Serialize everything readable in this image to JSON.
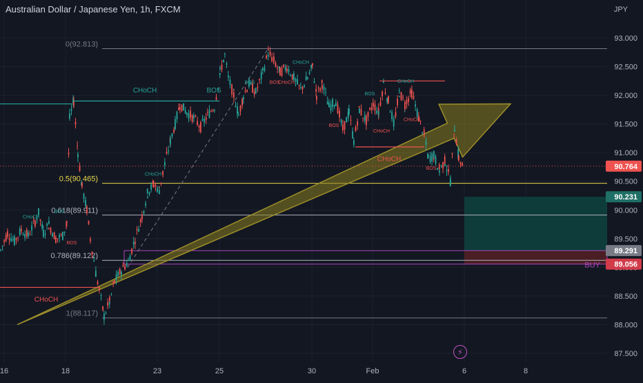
{
  "header": {
    "title": "Australian Dollar / Japanese Yen, 1h, FXCM",
    "currency": "JPY"
  },
  "colors": {
    "bg": "#131722",
    "grid": "#1e2230",
    "up": "#26a69a",
    "down": "#ef5350",
    "text": "#b2b5be",
    "fib_gold": "#e8d84a",
    "arrow": "#8a7d1f",
    "target": "#0e3c3a",
    "stop": "#4a1e24",
    "current_tag": "#ef5350",
    "entry_tag": "#787b86",
    "stop_tag": "#d13b4a",
    "target_tag": "#1f6f66",
    "buy_label": "#ab47bc"
  },
  "chart_data": {
    "type": "candlestick",
    "title": "Australian Dollar / Japanese Yen, 1h, FXCM",
    "ylabel": "JPY",
    "ylim": [
      87.4,
      93.3
    ],
    "y_ticks": [
      "93.000",
      "92.500",
      "92.000",
      "91.500",
      "91.000",
      "90.500",
      "90.000",
      "89.500",
      "89.000",
      "88.500",
      "88.000",
      "87.500"
    ],
    "y_tick_values": [
      93.0,
      92.5,
      92.0,
      91.5,
      91.0,
      90.5,
      90.0,
      89.5,
      89.0,
      88.5,
      88.0,
      87.5
    ],
    "x_ticks": [
      "16",
      "18",
      "23",
      "25",
      "30",
      "Feb",
      "6",
      "8"
    ],
    "price_path": [
      [
        0,
        89.3
      ],
      [
        10,
        89.6
      ],
      [
        20,
        89.45
      ],
      [
        30,
        89.65
      ],
      [
        40,
        89.55
      ],
      [
        50,
        89.8
      ],
      [
        55,
        89.95
      ],
      [
        62,
        89.6
      ],
      [
        70,
        89.75
      ],
      [
        80,
        89.5
      ],
      [
        90,
        89.55
      ],
      [
        96,
        89.8
      ],
      [
        100,
        91.6
      ],
      [
        106,
        91.9
      ],
      [
        112,
        91.0
      ],
      [
        118,
        90.4
      ],
      [
        125,
        90.0
      ],
      [
        130,
        89.5
      ],
      [
        138,
        88.9
      ],
      [
        143,
        88.6
      ],
      [
        150,
        88.15
      ],
      [
        158,
        88.4
      ],
      [
        165,
        88.75
      ],
      [
        175,
        88.95
      ],
      [
        185,
        89.1
      ],
      [
        195,
        89.5
      ],
      [
        205,
        89.9
      ],
      [
        213,
        90.3
      ],
      [
        222,
        90.45
      ],
      [
        230,
        90.35
      ],
      [
        238,
        90.8
      ],
      [
        246,
        91.2
      ],
      [
        253,
        91.5
      ],
      [
        260,
        91.85
      ],
      [
        270,
        91.7
      ],
      [
        280,
        91.6
      ],
      [
        290,
        91.45
      ],
      [
        300,
        91.65
      ],
      [
        310,
        91.8
      ],
      [
        318,
        92.4
      ],
      [
        325,
        92.7
      ],
      [
        330,
        92.3
      ],
      [
        338,
        92.0
      ],
      [
        345,
        91.65
      ],
      [
        352,
        92.0
      ],
      [
        360,
        92.2
      ],
      [
        370,
        92.05
      ],
      [
        380,
        92.4
      ],
      [
        388,
        92.75
      ],
      [
        396,
        92.6
      ],
      [
        405,
        92.4
      ],
      [
        415,
        92.5
      ],
      [
        425,
        92.3
      ],
      [
        435,
        92.1
      ],
      [
        445,
        92.3
      ],
      [
        452,
        92.5
      ],
      [
        458,
        92.0
      ],
      [
        466,
        92.2
      ],
      [
        476,
        91.8
      ],
      [
        486,
        91.9
      ],
      [
        496,
        91.4
      ],
      [
        505,
        91.7
      ],
      [
        512,
        91.2
      ],
      [
        520,
        91.75
      ],
      [
        530,
        91.55
      ],
      [
        540,
        91.85
      ],
      [
        548,
        91.7
      ],
      [
        555,
        92.2
      ],
      [
        562,
        91.9
      ],
      [
        570,
        91.5
      ],
      [
        578,
        92.05
      ],
      [
        586,
        91.85
      ],
      [
        596,
        92.05
      ],
      [
        606,
        91.6
      ],
      [
        614,
        91.3
      ],
      [
        620,
        90.9
      ],
      [
        628,
        90.95
      ],
      [
        636,
        90.7
      ],
      [
        644,
        90.85
      ],
      [
        652,
        90.5
      ],
      [
        658,
        91.45
      ],
      [
        664,
        90.9
      ],
      [
        670,
        90.76
      ]
    ],
    "structure_lines": [
      {
        "label": "CHoCH",
        "x1": 0,
        "x2": 105,
        "y": 91.85,
        "color": "#26a69a",
        "label_x": 210,
        "label_y": 92.05
      },
      {
        "label": "CHoCH",
        "x1": 0,
        "x2": 145,
        "y": 88.65,
        "color": "#ef5350",
        "label_x": 67,
        "label_y": 88.4
      },
      {
        "label": "BOS",
        "x1": 105,
        "x2": 318,
        "y": 91.9,
        "color": "#26a69a",
        "label_x": 310,
        "label_y": 92.05
      },
      {
        "label": "CHoCH",
        "x1": 515,
        "x2": 615,
        "y": 91.1,
        "color": "#ef5350",
        "label_x": 564,
        "label_y": 90.85
      },
      {
        "label": "",
        "x1": 550,
        "x2": 645,
        "y": 92.25,
        "color": "#ef5350",
        "label_x": 0,
        "label_y": 0
      }
    ],
    "small_labels": [
      {
        "text": "CHoCH",
        "x": 45,
        "y": 89.85,
        "color": "#26a69a"
      },
      {
        "text": "BOS",
        "x": 86,
        "y": 89.95,
        "color": "#26a69a"
      },
      {
        "text": "BOS",
        "x": 104,
        "y": 89.4,
        "color": "#ef5350"
      },
      {
        "text": "CHoCH",
        "x": 222,
        "y": 90.6,
        "color": "#26a69a"
      },
      {
        "text": "BOS",
        "x": 362,
        "y": 92.2,
        "color": "#26a69a"
      },
      {
        "text": "BOS",
        "x": 398,
        "y": 92.2,
        "color": "#ef5350"
      },
      {
        "text": "CHoCH",
        "x": 436,
        "y": 92.55,
        "color": "#26a69a"
      },
      {
        "text": "CHoCH",
        "x": 415,
        "y": 92.2,
        "color": "#ef5350"
      },
      {
        "text": "BOS",
        "x": 484,
        "y": 91.45,
        "color": "#ef5350"
      },
      {
        "text": "BOS",
        "x": 536,
        "y": 92.0,
        "color": "#26a69a"
      },
      {
        "text": "CHoCH",
        "x": 553,
        "y": 91.35,
        "color": "#ef5350"
      },
      {
        "text": "CHoCH",
        "x": 588,
        "y": 92.22,
        "color": "#26a69a"
      },
      {
        "text": "CHoCH",
        "x": 597,
        "y": 91.55,
        "color": "#ef5350"
      },
      {
        "text": "BOS",
        "x": 625,
        "y": 90.7,
        "color": "#ef5350"
      }
    ],
    "fib_levels": [
      {
        "label": "0(92.813)",
        "value": 92.813,
        "color": "#787b86"
      },
      {
        "label": "0.5(90.465)",
        "value": 90.465,
        "color": "#e8d84a"
      },
      {
        "label": "0.618(89.911)",
        "value": 89.911,
        "color": "#b2b5be"
      },
      {
        "label": "0.786(89.122)",
        "value": 89.122,
        "color": "#b2b5be"
      },
      {
        "label": "1(88.117)",
        "value": 88.117,
        "color": "#787b86"
      }
    ],
    "position": {
      "side": "BUY",
      "entry": 89.291,
      "stop": 89.056,
      "target": 90.231,
      "entry_label": "89.291",
      "stop_label": "89.056",
      "target_label": "90.231"
    },
    "current_price": {
      "value": 90.764,
      "label": "90.764"
    },
    "arrow": {
      "from": [
        25,
        88.0
      ],
      "to": [
        740,
        91.85
      ]
    }
  }
}
